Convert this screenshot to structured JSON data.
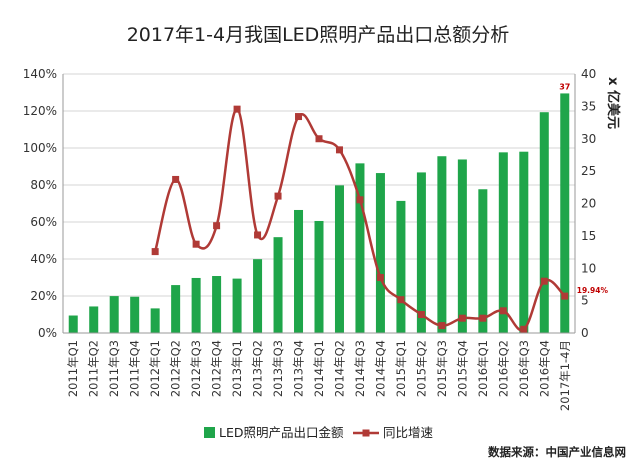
{
  "chart_data": {
    "title": "2017年1-4月我国LED照明产品出口总额分析",
    "categories": [
      "2011年Q1",
      "2011年Q2",
      "2011年Q3",
      "2011年Q4",
      "2012年Q1",
      "2012年Q2",
      "2012年Q3",
      "2012年Q4",
      "2013年Q1",
      "2013年Q2",
      "2013年Q3",
      "2013年Q4",
      "2014年Q1",
      "2014年Q2",
      "2014年Q3",
      "2014年Q4",
      "2015年Q1",
      "2015年Q2",
      "2015年Q3",
      "2015年Q4",
      "2016年Q1",
      "2016年Q2",
      "2016年Q3",
      "2016年Q4",
      "2017年1-4月"
    ],
    "series": [
      {
        "name": "LED照明产品出口金额",
        "type": "bar",
        "axis": "right",
        "color": "#1fa54a",
        "values": [
          2.7,
          4.1,
          5.7,
          5.6,
          3.8,
          7.4,
          8.5,
          8.8,
          8.4,
          11.4,
          14.8,
          19.0,
          17.3,
          22.8,
          26.2,
          24.7,
          20.4,
          24.8,
          27.3,
          26.8,
          22.2,
          27.9,
          28.0,
          34.1,
          37.0
        ]
      },
      {
        "name": "同比增速",
        "type": "line",
        "axis": "left",
        "color": "#b03a36",
        "values": [
          null,
          null,
          null,
          null,
          44,
          83,
          48,
          58,
          121,
          53,
          74,
          117,
          105,
          99,
          72,
          30,
          18,
          10,
          4,
          8,
          8,
          12,
          2,
          28,
          19.94
        ]
      }
    ],
    "yleft": {
      "min": 0,
      "max": 140,
      "step": 20,
      "suffix": "%"
    },
    "yright": {
      "min": 0,
      "max": 40,
      "step": 5,
      "label": "x 亿美元"
    },
    "data_labels": {
      "last_bar": "37",
      "last_point": "19.94%"
    },
    "legend": {
      "position": "bottom",
      "items": [
        "LED照明产品出口金额",
        "同比增速"
      ]
    },
    "grid": true
  },
  "source": "数据来源：中国产业信息网"
}
